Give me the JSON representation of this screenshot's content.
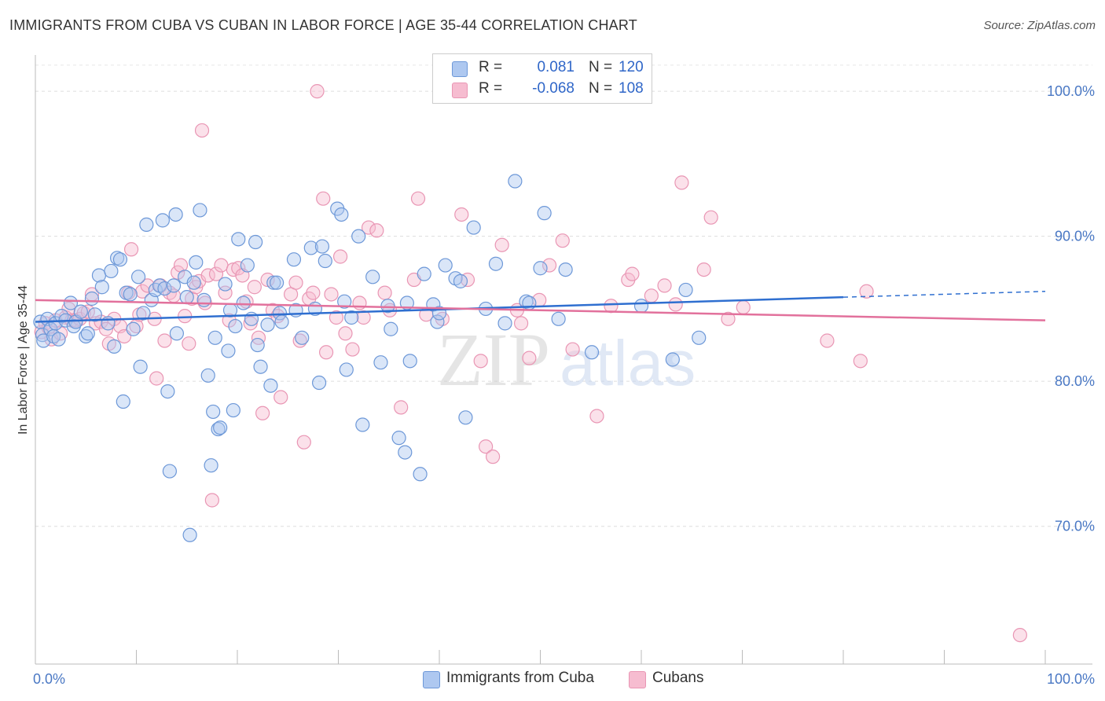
{
  "header": {
    "title": "IMMIGRANTS FROM CUBA VS CUBAN IN LABOR FORCE | AGE 35-44 CORRELATION CHART",
    "source": "Source: ZipAtlas.com"
  },
  "watermark": {
    "zip": "ZIP",
    "atlas": "atlas"
  },
  "legend": {
    "rows": [
      {
        "r_label": "R =",
        "r_value": "0.081",
        "n_label": "N =",
        "n_value": "120"
      },
      {
        "r_label": "R =",
        "r_value": "-0.068",
        "n_label": "N =",
        "n_value": "108"
      }
    ]
  },
  "bottom_legend": {
    "series1": "Immigrants from Cuba",
    "series2": "Cubans"
  },
  "colors": {
    "blue_fill": "#aec8f0",
    "blue_stroke": "#6d98d8",
    "blue_line": "#2f6fd0",
    "pink_fill": "#f6bcd0",
    "pink_stroke": "#e996b4",
    "pink_line": "#e2719c",
    "tick_text": "#4a78c4"
  },
  "chart_data": {
    "type": "scatter",
    "xlabel": "",
    "ylabel": "In Labor Force | Age 35-44",
    "xlim": [
      0,
      100
    ],
    "ylim": [
      60.5,
      102.5
    ],
    "x_tick_labels": [
      "0.0%",
      "100.0%"
    ],
    "y_ticks": [
      {
        "value": 100,
        "label": "100.0%"
      },
      {
        "value": 90,
        "label": "90.0%"
      },
      {
        "value": 80,
        "label": "80.0%"
      },
      {
        "value": 70,
        "label": "70.0%"
      }
    ],
    "grid": true,
    "series": [
      {
        "name": "Immigrants from Cuba",
        "trend": {
          "x0": 0,
          "y0": 84.1,
          "x1": 80,
          "y1": 85.8,
          "dash_to_x": 100,
          "dash_to_y": 86.2
        },
        "points": [
          [
            0.5,
            84.1
          ],
          [
            0.7,
            83.2
          ],
          [
            0.8,
            82.8
          ],
          [
            1.2,
            84.3
          ],
          [
            1.5,
            83.6
          ],
          [
            1.8,
            83.1
          ],
          [
            2.0,
            84.0
          ],
          [
            2.3,
            82.9
          ],
          [
            2.6,
            84.5
          ],
          [
            3.0,
            84.2
          ],
          [
            3.5,
            85.4
          ],
          [
            3.8,
            83.8
          ],
          [
            4.0,
            84.1
          ],
          [
            4.5,
            84.8
          ],
          [
            5.0,
            83.1
          ],
          [
            5.2,
            83.3
          ],
          [
            5.6,
            85.7
          ],
          [
            5.9,
            84.6
          ],
          [
            6.3,
            87.3
          ],
          [
            6.6,
            86.5
          ],
          [
            7.2,
            84.0
          ],
          [
            7.5,
            87.6
          ],
          [
            7.8,
            82.4
          ],
          [
            8.1,
            88.5
          ],
          [
            8.4,
            88.4
          ],
          [
            8.7,
            78.6
          ],
          [
            9.0,
            86.1
          ],
          [
            9.4,
            86.0
          ],
          [
            9.7,
            83.6
          ],
          [
            10.2,
            87.2
          ],
          [
            10.4,
            81.0
          ],
          [
            10.7,
            84.7
          ],
          [
            11.0,
            90.8
          ],
          [
            11.5,
            85.6
          ],
          [
            11.9,
            86.3
          ],
          [
            12.3,
            86.6
          ],
          [
            12.6,
            91.1
          ],
          [
            12.8,
            86.4
          ],
          [
            13.1,
            79.3
          ],
          [
            13.3,
            73.8
          ],
          [
            13.7,
            86.6
          ],
          [
            13.9,
            91.5
          ],
          [
            14.0,
            83.3
          ],
          [
            14.8,
            87.2
          ],
          [
            15.0,
            85.8
          ],
          [
            15.3,
            69.4
          ],
          [
            15.7,
            86.8
          ],
          [
            15.9,
            88.2
          ],
          [
            16.3,
            91.8
          ],
          [
            16.7,
            85.6
          ],
          [
            17.1,
            80.4
          ],
          [
            17.4,
            74.2
          ],
          [
            17.6,
            77.9
          ],
          [
            17.8,
            83.0
          ],
          [
            18.1,
            76.7
          ],
          [
            18.3,
            76.8
          ],
          [
            18.8,
            86.7
          ],
          [
            19.1,
            82.1
          ],
          [
            19.3,
            84.9
          ],
          [
            19.6,
            78.0
          ],
          [
            19.8,
            83.8
          ],
          [
            20.1,
            89.8
          ],
          [
            20.6,
            85.4
          ],
          [
            21.0,
            88.0
          ],
          [
            21.4,
            84.3
          ],
          [
            21.8,
            89.6
          ],
          [
            22.0,
            82.5
          ],
          [
            22.3,
            81.0
          ],
          [
            23.0,
            83.9
          ],
          [
            23.3,
            79.7
          ],
          [
            23.6,
            86.8
          ],
          [
            23.9,
            86.8
          ],
          [
            24.2,
            84.7
          ],
          [
            24.4,
            84.1
          ],
          [
            25.6,
            88.4
          ],
          [
            25.8,
            84.9
          ],
          [
            26.4,
            83.0
          ],
          [
            27.3,
            89.2
          ],
          [
            27.7,
            85.0
          ],
          [
            28.1,
            79.9
          ],
          [
            28.4,
            89.3
          ],
          [
            28.7,
            88.3
          ],
          [
            29.9,
            91.9
          ],
          [
            30.3,
            91.5
          ],
          [
            30.6,
            85.5
          ],
          [
            30.8,
            80.8
          ],
          [
            31.3,
            84.4
          ],
          [
            32.0,
            90.0
          ],
          [
            32.4,
            77.0
          ],
          [
            33.4,
            87.2
          ],
          [
            34.2,
            81.3
          ],
          [
            34.9,
            85.2
          ],
          [
            35.2,
            83.6
          ],
          [
            36.0,
            76.1
          ],
          [
            36.6,
            75.1
          ],
          [
            36.8,
            85.4
          ],
          [
            37.1,
            81.4
          ],
          [
            38.1,
            73.6
          ],
          [
            38.5,
            87.4
          ],
          [
            39.4,
            85.3
          ],
          [
            39.8,
            84.1
          ],
          [
            40.0,
            84.7
          ],
          [
            40.6,
            88.0
          ],
          [
            41.6,
            87.1
          ],
          [
            42.1,
            86.9
          ],
          [
            42.6,
            77.5
          ],
          [
            43.4,
            90.6
          ],
          [
            44.6,
            85.0
          ],
          [
            45.6,
            88.1
          ],
          [
            46.5,
            84.0
          ],
          [
            47.5,
            93.8
          ],
          [
            48.6,
            85.5
          ],
          [
            48.9,
            85.4
          ],
          [
            50.0,
            87.8
          ],
          [
            50.4,
            91.6
          ],
          [
            51.8,
            84.3
          ],
          [
            52.5,
            87.7
          ],
          [
            55.1,
            82.0
          ],
          [
            60.0,
            85.2
          ],
          [
            63.1,
            81.5
          ],
          [
            64.4,
            86.3
          ],
          [
            65.7,
            83.0
          ]
        ]
      },
      {
        "name": "Cubans",
        "trend": {
          "x0": 0,
          "y0": 85.6,
          "x1": 100,
          "y1": 84.2
        },
        "points": [
          [
            0.6,
            83.4
          ],
          [
            1.0,
            84.0
          ],
          [
            1.3,
            83.7
          ],
          [
            1.6,
            82.9
          ],
          [
            2.0,
            84.2
          ],
          [
            2.5,
            83.3
          ],
          [
            3.0,
            84.4
          ],
          [
            3.3,
            85.0
          ],
          [
            3.6,
            84.2
          ],
          [
            4.0,
            84.2
          ],
          [
            4.4,
            84.3
          ],
          [
            4.8,
            84.7
          ],
          [
            5.2,
            84.8
          ],
          [
            5.6,
            86.0
          ],
          [
            6.0,
            84.0
          ],
          [
            6.5,
            84.1
          ],
          [
            7.0,
            83.6
          ],
          [
            7.3,
            82.6
          ],
          [
            7.8,
            84.3
          ],
          [
            8.4,
            83.8
          ],
          [
            8.8,
            83.1
          ],
          [
            9.2,
            86.1
          ],
          [
            9.5,
            89.1
          ],
          [
            10.0,
            83.8
          ],
          [
            10.3,
            84.6
          ],
          [
            10.6,
            86.2
          ],
          [
            11.1,
            86.6
          ],
          [
            11.8,
            84.3
          ],
          [
            12.0,
            80.2
          ],
          [
            12.4,
            86.6
          ],
          [
            12.8,
            82.8
          ],
          [
            13.3,
            86.1
          ],
          [
            13.7,
            85.9
          ],
          [
            14.1,
            87.5
          ],
          [
            14.4,
            88.0
          ],
          [
            14.8,
            84.5
          ],
          [
            15.2,
            82.6
          ],
          [
            15.5,
            85.7
          ],
          [
            15.9,
            86.5
          ],
          [
            16.2,
            86.9
          ],
          [
            16.5,
            97.3
          ],
          [
            16.8,
            85.4
          ],
          [
            17.1,
            87.3
          ],
          [
            17.5,
            71.8
          ],
          [
            17.9,
            87.4
          ],
          [
            18.4,
            88.0
          ],
          [
            18.8,
            86.1
          ],
          [
            19.2,
            84.2
          ],
          [
            19.6,
            87.7
          ],
          [
            20.1,
            87.8
          ],
          [
            20.5,
            87.3
          ],
          [
            20.9,
            85.5
          ],
          [
            21.3,
            84.0
          ],
          [
            21.7,
            86.5
          ],
          [
            22.1,
            83.0
          ],
          [
            22.5,
            77.8
          ],
          [
            23.0,
            87.0
          ],
          [
            23.5,
            84.9
          ],
          [
            24.0,
            84.5
          ],
          [
            24.3,
            78.9
          ],
          [
            25.3,
            86.0
          ],
          [
            25.8,
            86.8
          ],
          [
            26.2,
            82.8
          ],
          [
            26.6,
            75.8
          ],
          [
            27.1,
            85.7
          ],
          [
            27.5,
            86.1
          ],
          [
            27.9,
            100.0
          ],
          [
            28.5,
            92.6
          ],
          [
            28.8,
            82.0
          ],
          [
            29.3,
            86.0
          ],
          [
            29.8,
            84.4
          ],
          [
            30.2,
            88.6
          ],
          [
            30.7,
            83.3
          ],
          [
            31.4,
            82.2
          ],
          [
            32.1,
            85.4
          ],
          [
            32.5,
            84.4
          ],
          [
            33.0,
            90.6
          ],
          [
            33.8,
            90.4
          ],
          [
            34.6,
            86.1
          ],
          [
            35.1,
            84.9
          ],
          [
            36.2,
            78.2
          ],
          [
            37.5,
            87.0
          ],
          [
            37.9,
            92.6
          ],
          [
            38.7,
            84.6
          ],
          [
            40.3,
            84.3
          ],
          [
            42.2,
            91.5
          ],
          [
            42.8,
            87.0
          ],
          [
            44.1,
            81.4
          ],
          [
            44.6,
            75.5
          ],
          [
            45.3,
            74.8
          ],
          [
            46.2,
            89.4
          ],
          [
            47.7,
            84.9
          ],
          [
            48.1,
            84.0
          ],
          [
            48.9,
            81.6
          ],
          [
            49.9,
            85.6
          ],
          [
            50.9,
            88.0
          ],
          [
            52.2,
            89.7
          ],
          [
            53.2,
            82.2
          ],
          [
            55.6,
            77.6
          ],
          [
            57.0,
            85.2
          ],
          [
            58.7,
            87.0
          ],
          [
            59.1,
            87.4
          ],
          [
            61.0,
            85.9
          ],
          [
            62.3,
            86.6
          ],
          [
            63.4,
            85.3
          ],
          [
            64.0,
            93.7
          ],
          [
            66.2,
            87.7
          ],
          [
            66.9,
            91.3
          ],
          [
            68.6,
            84.3
          ],
          [
            70.1,
            85.1
          ],
          [
            78.4,
            82.8
          ],
          [
            81.7,
            81.4
          ],
          [
            82.3,
            86.2
          ],
          [
            97.5,
            62.5
          ]
        ]
      }
    ]
  }
}
